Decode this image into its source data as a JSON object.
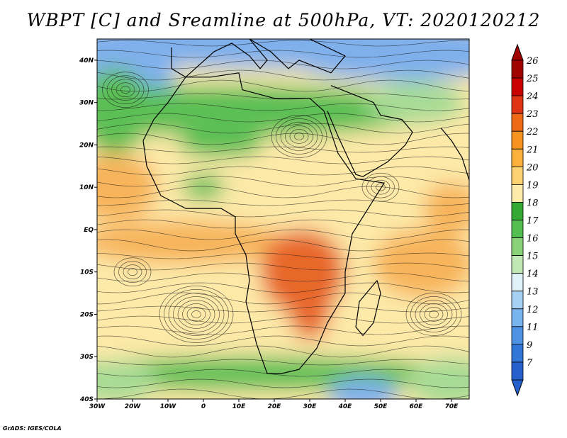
{
  "title": "WBPT [C] and Sreamline at 500hPa, VT: 2020120212",
  "credit": "GrADS: IGES/COLA",
  "map": {
    "lon_range": [
      -30,
      75
    ],
    "lat_range": [
      -40,
      45
    ],
    "x_ticks": [
      {
        "lon": -30,
        "label": "30W"
      },
      {
        "lon": -20,
        "label": "20W"
      },
      {
        "lon": -10,
        "label": "10W"
      },
      {
        "lon": 0,
        "label": "0"
      },
      {
        "lon": 10,
        "label": "10E"
      },
      {
        "lon": 20,
        "label": "20E"
      },
      {
        "lon": 30,
        "label": "30E"
      },
      {
        "lon": 40,
        "label": "40E"
      },
      {
        "lon": 50,
        "label": "50E"
      },
      {
        "lon": 60,
        "label": "60E"
      },
      {
        "lon": 70,
        "label": "70E"
      }
    ],
    "y_ticks": [
      {
        "lat": 40,
        "label": "40N"
      },
      {
        "lat": 30,
        "label": "30N"
      },
      {
        "lat": 20,
        "label": "20N"
      },
      {
        "lat": 10,
        "label": "10N"
      },
      {
        "lat": 0,
        "label": "EQ"
      },
      {
        "lat": -10,
        "label": "10S"
      },
      {
        "lat": -20,
        "label": "20S"
      },
      {
        "lat": -30,
        "label": "30S"
      },
      {
        "lat": -40,
        "label": "40S"
      }
    ]
  },
  "colorbar": {
    "labels": [
      "26",
      "25",
      "24",
      "23",
      "22",
      "21",
      "20",
      "19",
      "18",
      "17",
      "16",
      "15",
      "14",
      "13",
      "12",
      "11",
      "9",
      "7"
    ],
    "colors": [
      "#a00000",
      "#c80000",
      "#e03414",
      "#ef6a14",
      "#f7931e",
      "#fcb13c",
      "#fdd270",
      "#fdebaa",
      "#36a935",
      "#54be50",
      "#8ad27a",
      "#bfe8b4",
      "#dff2f8",
      "#a6d0f4",
      "#78b4ee",
      "#4e93e3",
      "#3177d8",
      "#2660cc"
    ]
  },
  "colors": {
    "cold_blue": "#7fb0ec",
    "green": "#5cbf55",
    "light_green": "#a6db95",
    "yellow": "#fde9a8",
    "orange": "#f7b45a",
    "deep_orange": "#e8682a",
    "streamline": "#1a1a1a"
  }
}
